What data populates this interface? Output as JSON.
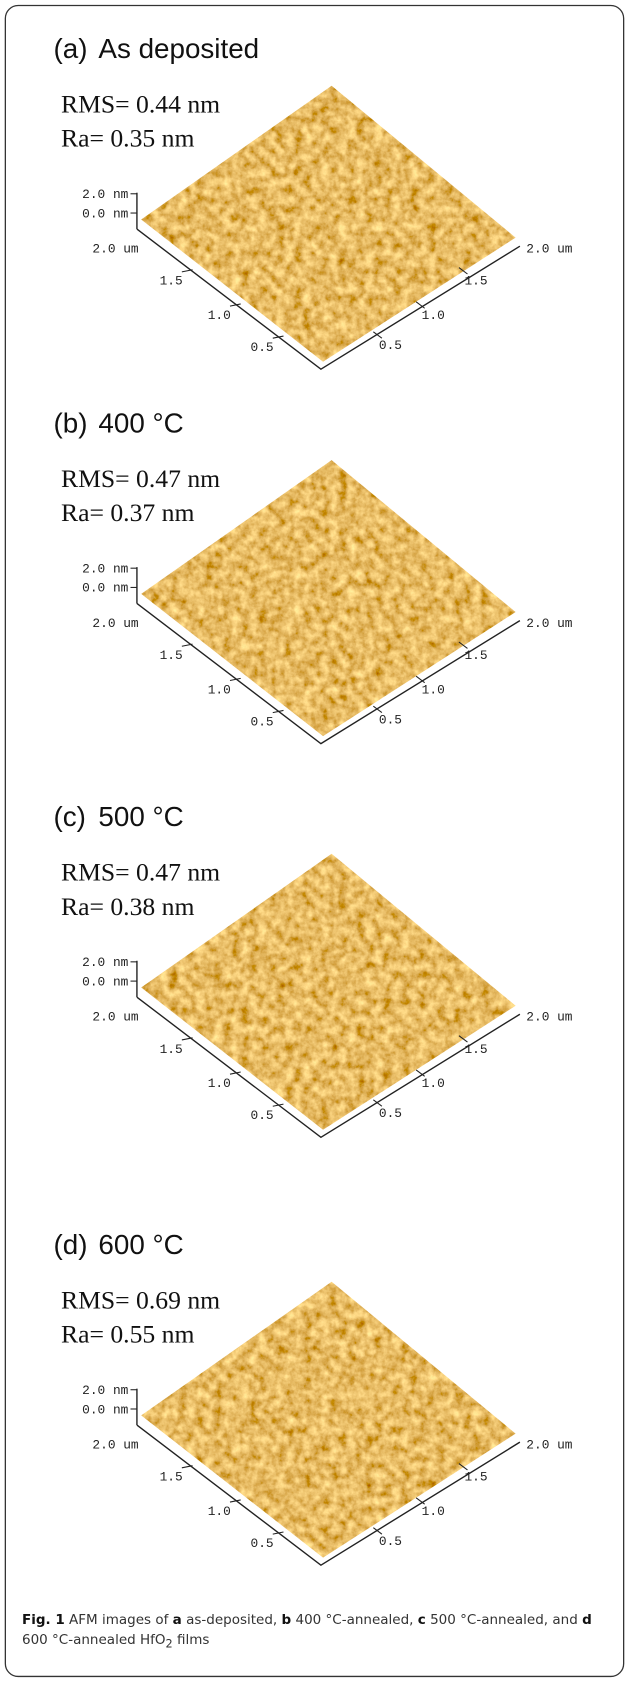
{
  "panels": [
    {
      "label": "(a)",
      "title": "As deposited",
      "rms": "RMS= 0.44 nm",
      "ra": "Ra= 0.35 nm",
      "z_labels": [
        "2.0 nm",
        "0.0 nm"
      ],
      "left_axis": [
        "2.0 um",
        "1.5",
        "1.0",
        "0.5"
      ],
      "right_axis": [
        "2.0 um",
        "1.5",
        "1.0",
        "0.5"
      ]
    },
    {
      "label": "(b)",
      "title": "400 °C",
      "rms": "RMS= 0.47 nm",
      "ra": "Ra= 0.37 nm",
      "z_labels": [
        "2.0 nm",
        "0.0 nm"
      ],
      "left_axis": [
        "2.0 um",
        "1.5",
        "1.0",
        "0.5"
      ],
      "right_axis": [
        "2.0 um",
        "1.5",
        "1.0",
        "0.5"
      ]
    },
    {
      "label": "(c)",
      "title": "500 °C",
      "rms": "RMS= 0.47 nm",
      "ra": "Ra= 0.38 nm",
      "z_labels": [
        "2.0 nm",
        "0.0 nm"
      ],
      "left_axis": [
        "2.0 um",
        "1.5",
        "1.0",
        "0.5"
      ],
      "right_axis": [
        "2.0 um",
        "1.5",
        "1.0",
        "0.5"
      ]
    },
    {
      "label": "(d)",
      "title": "600 °C",
      "rms": "RMS= 0.69 nm",
      "ra": "Ra= 0.55 nm",
      "z_labels": [
        "2.0 nm",
        "0.0 nm"
      ],
      "left_axis": [
        "2.0 um",
        "1.5",
        "1.0",
        "0.5"
      ],
      "right_axis": [
        "2.0 um",
        "1.5",
        "1.0",
        "0.5"
      ]
    }
  ],
  "caption": {
    "parts": [
      "Fig. 1",
      "AFM images of",
      "a",
      "as-deposited,",
      "b",
      "400 °C-annealed,",
      "c",
      "500 °C-annealed, and",
      "d",
      "600 °C-annealed HfO",
      "2",
      "films"
    ]
  }
}
